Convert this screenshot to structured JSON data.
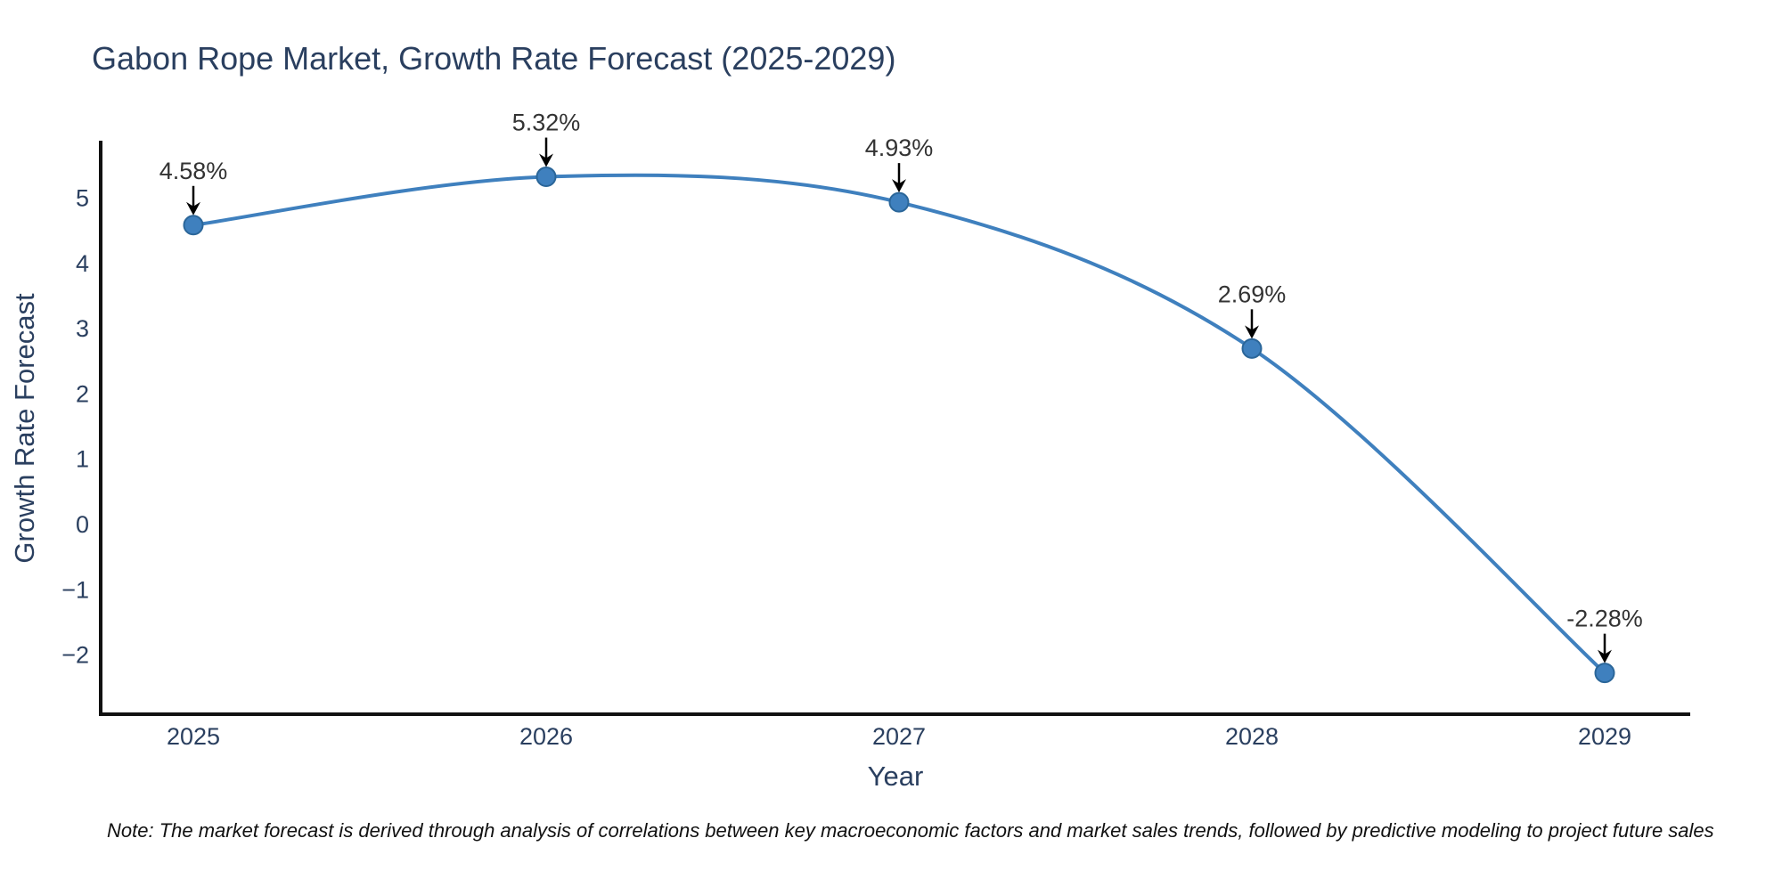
{
  "page": {
    "background": "#ffffff"
  },
  "header": {
    "title": "Gabon Rope Market, Growth Rate Forecast (2025-2029)"
  },
  "chart_data": {
    "type": "line",
    "title": "Gabon Rope Market, Growth Rate Forecast (2025-2029)",
    "xlabel": "Year",
    "ylabel": "Growth Rate Forecast",
    "x": [
      2025,
      2026,
      2027,
      2028,
      2029
    ],
    "values": [
      4.58,
      5.32,
      4.93,
      2.69,
      -2.28
    ],
    "point_labels": [
      "4.58%",
      "5.32%",
      "4.93%",
      "2.69%",
      "-2.28%"
    ],
    "x_tick_labels": [
      "2025",
      "2026",
      "2027",
      "2028",
      "2029"
    ],
    "y_tick_values": [
      5,
      4,
      3,
      2,
      1,
      0,
      -1,
      -2
    ],
    "y_tick_labels": [
      "5",
      "4",
      "3",
      "2",
      "1",
      "0",
      "−1",
      "−2"
    ],
    "line_shape": "spline",
    "markers": true,
    "grid": false,
    "legend": false,
    "ylim": [
      -2.9,
      5.9
    ],
    "annotations_arrow": "down-to-point"
  },
  "colors": {
    "line": "#3F80BE",
    "marker_fill": "#3F80BE",
    "marker_edge": "#2B6699",
    "axis_line": "#111111",
    "heading_text": "#2a3f5f",
    "tick_text": "#2a3f5f",
    "annotation_text": "#333333",
    "arrow": "#000000",
    "background": "#ffffff"
  },
  "footnote": {
    "text": "Note: The market forecast is derived through analysis of correlations between key macroeconomic factors and market sales trends, followed by predictive modeling to project future sales"
  }
}
